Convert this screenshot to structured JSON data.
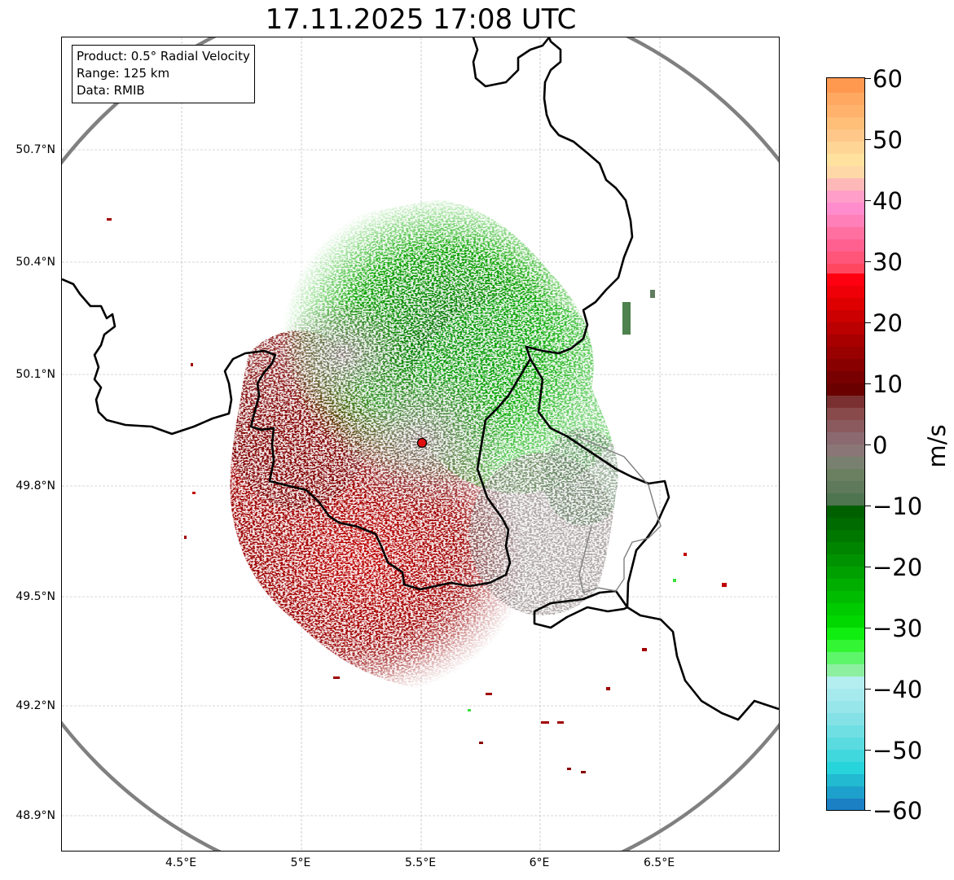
{
  "title": "17.11.2025 17:08 UTC",
  "info": {
    "product": "Product: 0.5° Radial Velocity",
    "range": "Range: 125 km",
    "source": "Data: RMIB"
  },
  "axes": {
    "lat_labels": [
      "50.7°N",
      "50.4°N",
      "50.1°N",
      "49.8°N",
      "49.5°N",
      "49.2°N",
      "48.9°N"
    ],
    "lon_labels": [
      "4.5°E",
      "5°E",
      "5.5°E",
      "6°E",
      "6.5°E"
    ]
  },
  "colorbar": {
    "unit": "m/s",
    "ticks": [
      "60",
      "50",
      "40",
      "30",
      "20",
      "10",
      "0",
      "−10",
      "−20",
      "−30",
      "−40",
      "−50",
      "−60"
    ],
    "min": -60,
    "max": 60
  },
  "radar": {
    "site_marker_color": "#e01010",
    "range_ring_color": "#808080"
  }
}
